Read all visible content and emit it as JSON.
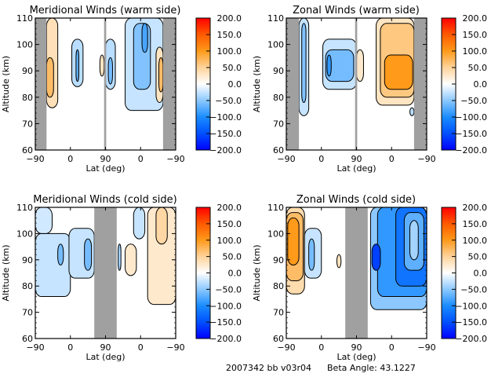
{
  "footer": {
    "date_code": "2007342 bb v03r04",
    "beta_label": "Beta Angle: 43.1227"
  },
  "colorbar": {
    "ticks": [
      "200.0",
      "150.0",
      "100.0",
      "50.0",
      "0.0",
      "-50.0",
      "-100.0",
      "-150.0",
      "-200.0"
    ],
    "range": [
      -200,
      200
    ],
    "colors": [
      {
        "v": -200,
        "c": "#0000ff"
      },
      {
        "v": -150,
        "c": "#0050ff"
      },
      {
        "v": -100,
        "c": "#1a8cff"
      },
      {
        "v": -50,
        "c": "#8cc8ff"
      },
      {
        "v": 0,
        "c": "#ffffff"
      },
      {
        "v": 50,
        "c": "#ffd39a"
      },
      {
        "v": 100,
        "c": "#ff9a1a"
      },
      {
        "v": 150,
        "c": "#ff5a00"
      },
      {
        "v": 200,
        "c": "#ff0000"
      }
    ]
  },
  "chart_data": [
    {
      "type": "heatmap",
      "title": "Meridional Winds (warm side)",
      "xlabel": "Lat (deg)",
      "ylabel": "Altitude (km)",
      "xticks": [
        "-90",
        "0",
        "90",
        "0",
        "-90"
      ],
      "yticks": [
        "60",
        "70",
        "80",
        "90",
        "100",
        "110"
      ],
      "ylim": [
        60,
        110
      ],
      "colorbar_range": [
        -200,
        200
      ],
      "no_data_bands_x_fraction": [
        [
          0.0,
          0.08
        ],
        [
          0.49,
          0.505
        ],
        [
          0.91,
          1.0
        ]
      ],
      "regions": [
        {
          "x": [
            0.08,
            0.16
          ],
          "y": [
            76,
            110
          ],
          "value": 35
        },
        {
          "x": [
            0.08,
            0.13
          ],
          "y": [
            80,
            95
          ],
          "value": 70
        },
        {
          "x": [
            0.26,
            0.34
          ],
          "y": [
            84,
            102
          ],
          "value": -30
        },
        {
          "x": [
            0.29,
            0.31
          ],
          "y": [
            86,
            98
          ],
          "value": -70
        },
        {
          "x": [
            0.46,
            0.49
          ],
          "y": [
            88,
            96
          ],
          "value": 30
        },
        {
          "x": [
            0.5,
            0.57
          ],
          "y": [
            83,
            102
          ],
          "value": -30
        },
        {
          "x": [
            0.52,
            0.55
          ],
          "y": [
            85,
            95
          ],
          "value": -60
        },
        {
          "x": [
            0.64,
            0.91
          ],
          "y": [
            75,
            110
          ],
          "value": -25
        },
        {
          "x": [
            0.7,
            0.82
          ],
          "y": [
            83,
            108
          ],
          "value": -55
        },
        {
          "x": [
            0.76,
            0.8
          ],
          "y": [
            97,
            108
          ],
          "value": -80
        },
        {
          "x": [
            0.86,
            0.91
          ],
          "y": [
            78,
            99
          ],
          "value": 30
        },
        {
          "x": [
            0.88,
            0.91
          ],
          "y": [
            82,
            95
          ],
          "value": 70
        }
      ]
    },
    {
      "type": "heatmap",
      "title": "Zonal Winds (warm side)",
      "xlabel": "Lat (deg)",
      "ylabel": "Altitude (km)",
      "xticks": [
        "-90",
        "0",
        "90",
        "0",
        "-90"
      ],
      "yticks": [
        "60",
        "70",
        "80",
        "90",
        "100",
        "110"
      ],
      "ylim": [
        60,
        110
      ],
      "colorbar_range": [
        -200,
        200
      ],
      "no_data_bands_x_fraction": [
        [
          0.0,
          0.09
        ],
        [
          0.49,
          0.505
        ],
        [
          0.91,
          1.0
        ]
      ],
      "regions": [
        {
          "x": [
            0.09,
            0.16
          ],
          "y": [
            73,
            110
          ],
          "value": -25
        },
        {
          "x": [
            0.11,
            0.14
          ],
          "y": [
            78,
            108
          ],
          "value": -55
        },
        {
          "x": [
            0.26,
            0.5
          ],
          "y": [
            83,
            102
          ],
          "value": -25
        },
        {
          "x": [
            0.28,
            0.48
          ],
          "y": [
            86,
            98
          ],
          "value": -60
        },
        {
          "x": [
            0.29,
            0.32
          ],
          "y": [
            88,
            96
          ],
          "value": -90
        },
        {
          "x": [
            0.5,
            0.55
          ],
          "y": [
            86,
            98
          ],
          "value": 25
        },
        {
          "x": [
            0.64,
            0.91
          ],
          "y": [
            77,
            110
          ],
          "value": 30
        },
        {
          "x": [
            0.67,
            0.91
          ],
          "y": [
            80,
            108
          ],
          "value": 60
        },
        {
          "x": [
            0.7,
            0.9
          ],
          "y": [
            83,
            96
          ],
          "value": 100
        },
        {
          "x": [
            0.88,
            0.91
          ],
          "y": [
            73,
            76
          ],
          "value": -30
        }
      ]
    },
    {
      "type": "heatmap",
      "title": "Meridional Winds (cold side)",
      "xlabel": "Lat (deg)",
      "ylabel": "Altitude (km)",
      "xticks": [
        "-90",
        "0",
        "90",
        "0",
        "-90"
      ],
      "yticks": [
        "60",
        "70",
        "80",
        "90",
        "100",
        "110"
      ],
      "ylim": [
        60,
        110
      ],
      "colorbar_range": [
        -200,
        200
      ],
      "no_data_bands_x_fraction": [
        [
          0.42,
          0.58
        ]
      ],
      "regions": [
        {
          "x": [
            0.0,
            0.25
          ],
          "y": [
            76,
            100
          ],
          "value": -25
        },
        {
          "x": [
            0.0,
            0.12
          ],
          "y": [
            100,
            110
          ],
          "value": -20
        },
        {
          "x": [
            0.16,
            0.2
          ],
          "y": [
            88,
            96
          ],
          "value": -60
        },
        {
          "x": [
            0.24,
            0.42
          ],
          "y": [
            83,
            102
          ],
          "value": -25
        },
        {
          "x": [
            0.35,
            0.4
          ],
          "y": [
            86,
            98
          ],
          "value": -60
        },
        {
          "x": [
            0.59,
            0.61
          ],
          "y": [
            86,
            96
          ],
          "value": -40
        },
        {
          "x": [
            0.64,
            0.72
          ],
          "y": [
            84,
            96
          ],
          "value": 25
        },
        {
          "x": [
            0.7,
            0.78
          ],
          "y": [
            98,
            110
          ],
          "value": -25
        },
        {
          "x": [
            0.8,
            1.0
          ],
          "y": [
            73,
            110
          ],
          "value": 25
        },
        {
          "x": [
            0.86,
            0.94
          ],
          "y": [
            96,
            110
          ],
          "value": 45
        }
      ]
    },
    {
      "type": "heatmap",
      "title": "Zonal Winds (cold side)",
      "xlabel": "Lat (deg)",
      "ylabel": "Altitude (km)",
      "xticks": [
        "-90",
        "0",
        "90",
        "0",
        "-90"
      ],
      "yticks": [
        "60",
        "70",
        "80",
        "90",
        "100",
        "110"
      ],
      "ylim": [
        60,
        110
      ],
      "colorbar_range": [
        -200,
        200
      ],
      "no_data_bands_x_fraction": [
        [
          0.42,
          0.58
        ]
      ],
      "regions": [
        {
          "x": [
            0.0,
            0.13
          ],
          "y": [
            77,
            110
          ],
          "value": 40
        },
        {
          "x": [
            0.0,
            0.12
          ],
          "y": [
            82,
            108
          ],
          "value": 70
        },
        {
          "x": [
            0.01,
            0.09
          ],
          "y": [
            88,
            106
          ],
          "value": 100
        },
        {
          "x": [
            0.13,
            0.25
          ],
          "y": [
            83,
            102
          ],
          "value": -25
        },
        {
          "x": [
            0.16,
            0.2
          ],
          "y": [
            86,
            98
          ],
          "value": -60
        },
        {
          "x": [
            0.36,
            0.39
          ],
          "y": [
            87,
            92
          ],
          "value": 30
        },
        {
          "x": [
            0.6,
            1.0
          ],
          "y": [
            71,
            110
          ],
          "value": -50
        },
        {
          "x": [
            0.65,
            1.0
          ],
          "y": [
            76,
            110
          ],
          "value": -90
        },
        {
          "x": [
            0.78,
            1.0
          ],
          "y": [
            80,
            110
          ],
          "value": -120
        },
        {
          "x": [
            0.84,
            0.98
          ],
          "y": [
            86,
            108
          ],
          "value": -70
        },
        {
          "x": [
            0.88,
            0.94
          ],
          "y": [
            90,
            105
          ],
          "value": -40
        },
        {
          "x": [
            0.61,
            0.67
          ],
          "y": [
            86,
            96
          ],
          "value": -160
        }
      ]
    }
  ]
}
